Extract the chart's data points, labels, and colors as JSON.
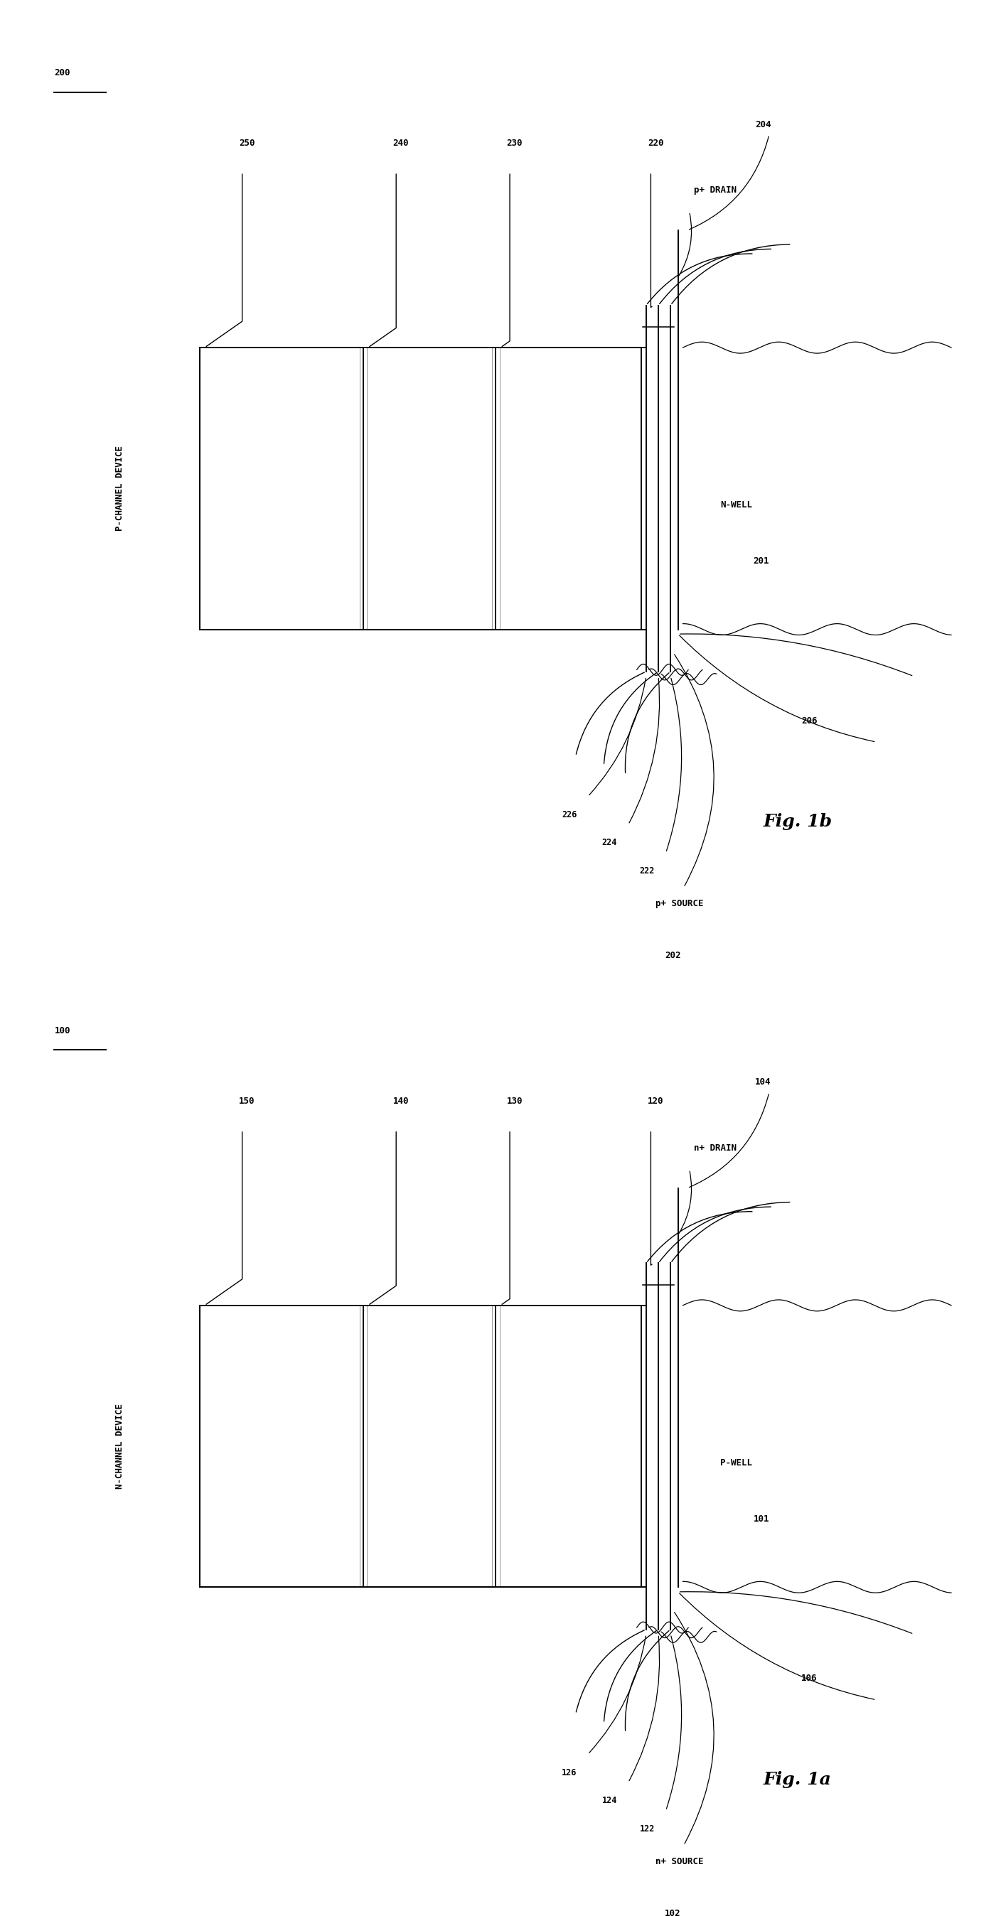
{
  "fig_width": 14.08,
  "fig_height": 26.96,
  "bg_color": "#ffffff",
  "lc": "#000000",
  "panels": [
    {
      "fig_label": "Fig. 1b",
      "ref_num": "200",
      "device_text": "P-CHANNEL DEVICE",
      "well_text": "N-WELL",
      "well_num": "201",
      "source_text": "p+ SOURCE",
      "source_num": "202",
      "drain_text": "p+ DRAIN",
      "drain_num": "204",
      "body_num": "206",
      "layer_nums": [
        "250",
        "240",
        "230",
        "220"
      ],
      "gate_nums": [
        "226",
        "224",
        "222"
      ]
    },
    {
      "fig_label": "Fig. 1a",
      "ref_num": "100",
      "device_text": "N-CHANNEL DEVICE",
      "well_text": "P-WELL",
      "well_num": "101",
      "source_text": "n+ SOURCE",
      "source_num": "102",
      "drain_text": "n+ DRAIN",
      "drain_num": "104",
      "body_num": "106",
      "layer_nums": [
        "150",
        "140",
        "130",
        "120"
      ],
      "gate_nums": [
        "126",
        "124",
        "122"
      ]
    }
  ]
}
